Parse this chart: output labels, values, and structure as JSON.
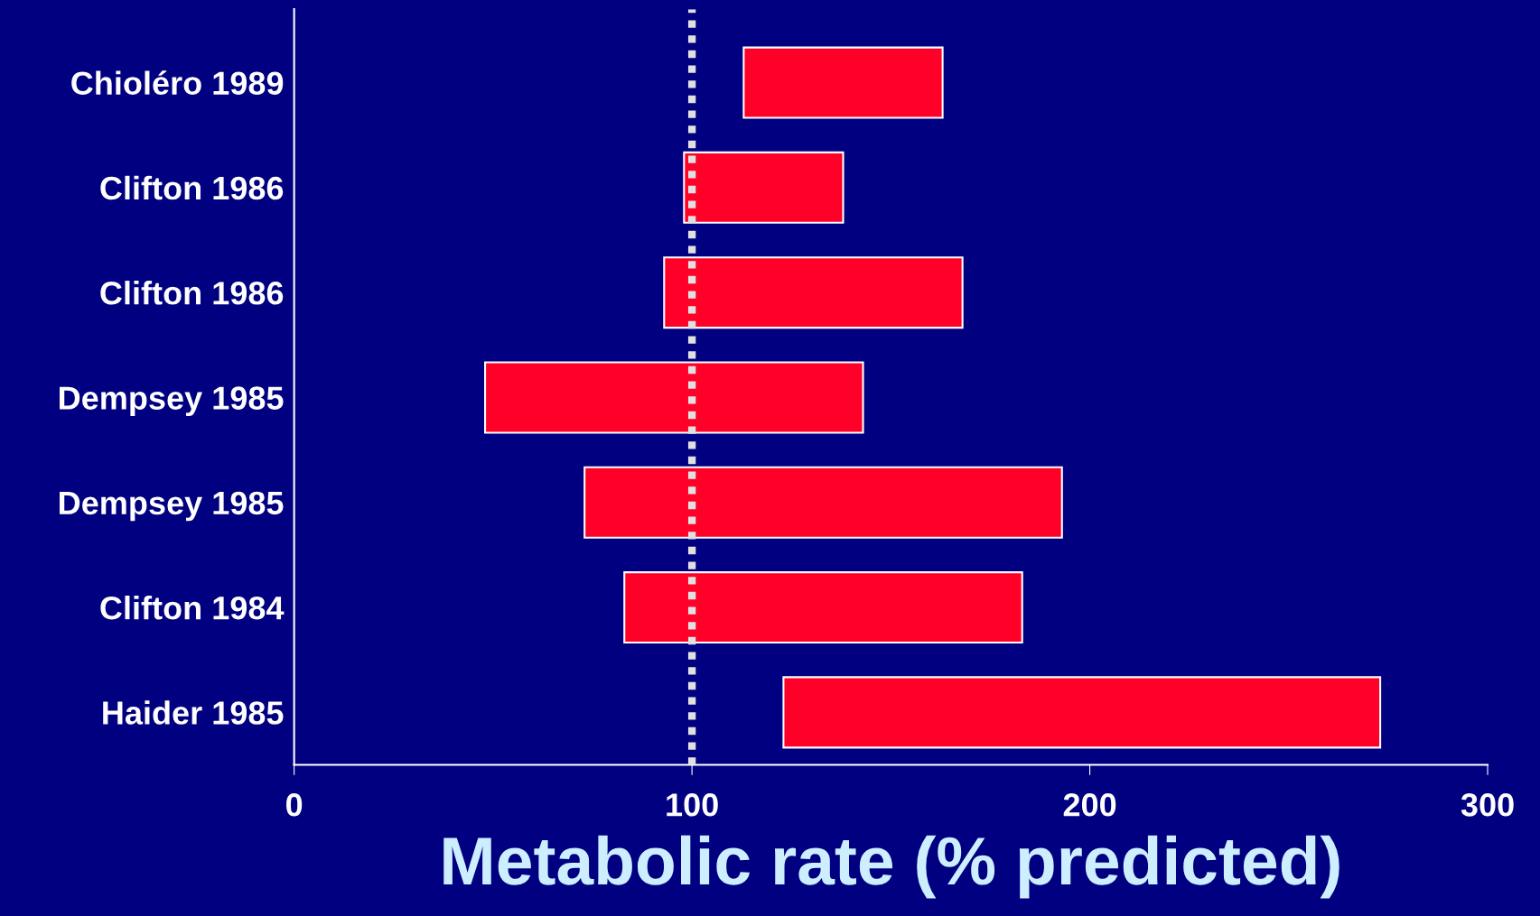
{
  "chart_data": {
    "type": "bar",
    "orientation": "horizontal",
    "categories": [
      "Chioléro 1989",
      "Clifton 1986",
      "Clifton 1986",
      "Dempsey 1985",
      "Dempsey 1985",
      "Clifton 1984",
      "Haider 1985"
    ],
    "base": [
      113,
      98,
      93,
      48,
      73,
      83,
      123
    ],
    "values": [
      50,
      40,
      75,
      95,
      120,
      100,
      150
    ],
    "color": "#ff0028",
    "xlabel": "Metabolic rate (% predicted)",
    "xlim": [
      0,
      300
    ],
    "xticks": [
      0,
      100,
      200,
      300
    ],
    "ref_lines": [
      {
        "axis": "x",
        "value": 100,
        "color": "#e0e0e0",
        "line_style": "dotted"
      }
    ],
    "grid": false,
    "legend": false
  }
}
